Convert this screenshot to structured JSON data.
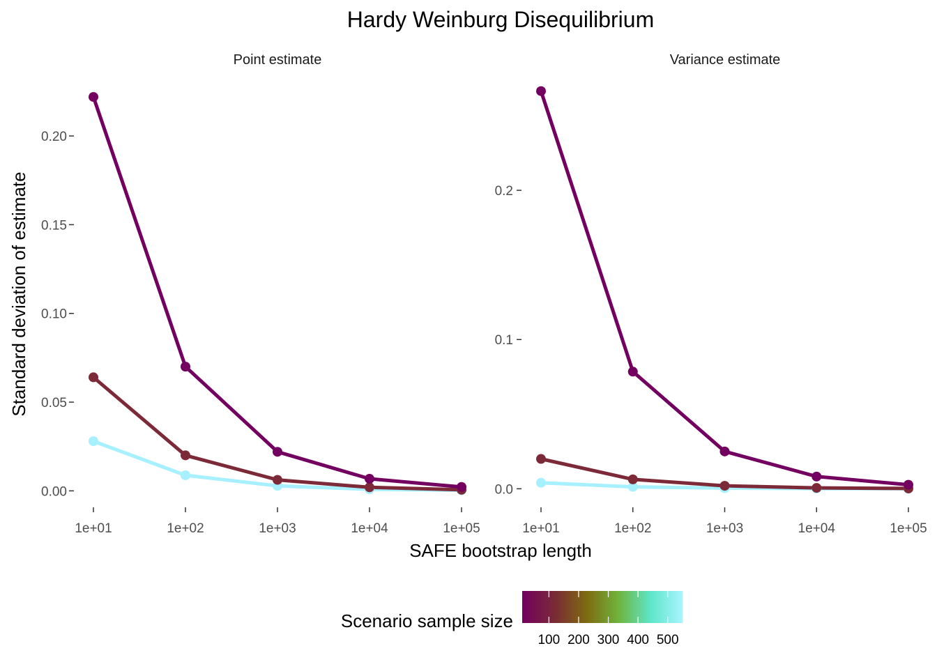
{
  "chart_data": {
    "type": "line",
    "title": "Hardy Weinburg Disequilibrium",
    "xlabel": "SAFE bootstrap length",
    "ylabel": "Standard deviation of estimate",
    "x_scale": "log10",
    "x": [
      10,
      100,
      1000,
      10000,
      100000
    ],
    "x_tick_labels": [
      "1e+01",
      "1e+02",
      "1e+03",
      "1e+04",
      "1e+05"
    ],
    "grid": false,
    "legend": {
      "title": "Scenario sample size",
      "type": "colorbar",
      "position": "bottom",
      "range": [
        10,
        550
      ],
      "ticks": [
        100,
        200,
        300,
        400,
        500
      ],
      "gradient_colors": [
        "#730060",
        "#7a2a36",
        "#7d6a10",
        "#6fb43c",
        "#5ee6c8",
        "#a8f4ff"
      ]
    },
    "panels": [
      {
        "strip": "Point estimate",
        "ylim": [
          -0.0085,
          0.2295
        ],
        "y_ticks": [
          0.0,
          0.05,
          0.1,
          0.15,
          0.2
        ],
        "y_tick_labels": [
          "0.00",
          "0.05",
          "0.10",
          "0.15",
          "0.20"
        ],
        "series": [
          {
            "sample_size": 10,
            "color": "#730060",
            "values": [
              0.222,
              0.07,
              0.022,
              0.0068,
              0.0022
            ]
          },
          {
            "sample_size": 100,
            "color": "#7c2a38",
            "values": [
              0.064,
              0.02,
              0.0062,
              0.002,
              0.0006
            ]
          },
          {
            "sample_size": 550,
            "color": "#a6f0ff",
            "values": [
              0.028,
              0.0088,
              0.0028,
              0.0009,
              0.0003
            ]
          }
        ]
      },
      {
        "strip": "Variance estimate",
        "ylim": [
          -0.0115,
          0.2715
        ],
        "y_ticks": [
          0.0,
          0.1,
          0.2
        ],
        "y_tick_labels": [
          "0.0",
          "0.1",
          "0.2"
        ],
        "series": [
          {
            "sample_size": 10,
            "color": "#730060",
            "values": [
              0.2665,
              0.0785,
              0.025,
              0.0082,
              0.0027
            ]
          },
          {
            "sample_size": 100,
            "color": "#7c2a38",
            "values": [
              0.02,
              0.0063,
              0.002,
              0.0006,
              0.0002
            ]
          },
          {
            "sample_size": 550,
            "color": "#a6f0ff",
            "values": [
              0.004,
              0.0013,
              0.0004,
              0.0001,
              4e-05
            ]
          }
        ]
      }
    ]
  }
}
